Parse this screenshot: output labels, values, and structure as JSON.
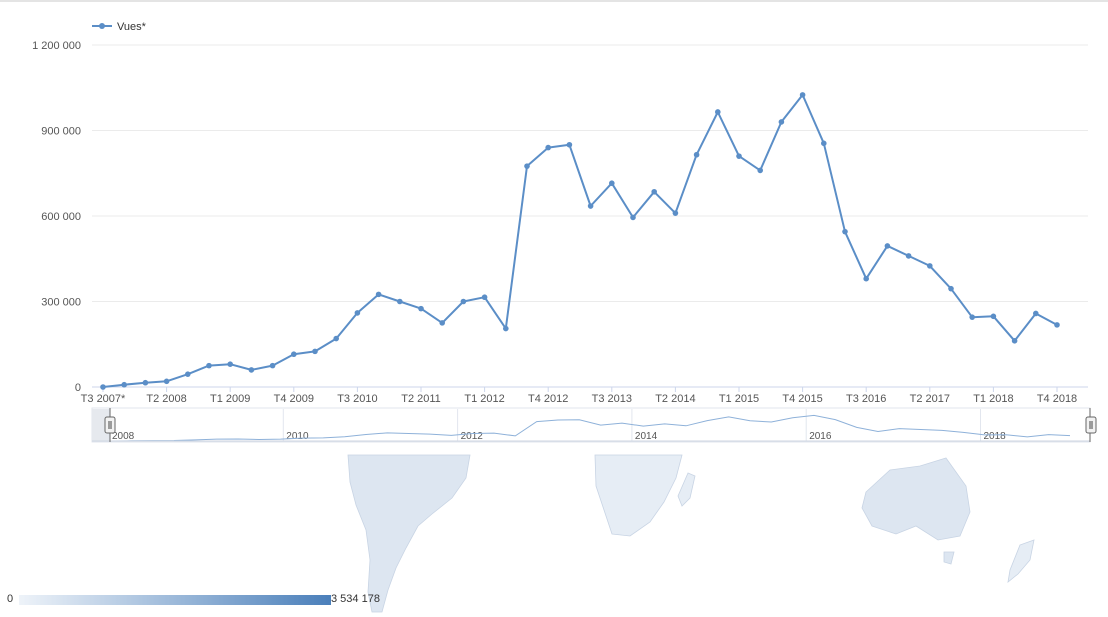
{
  "chart_data": {
    "type": "line",
    "legend": {
      "label": "Vues*",
      "placement": "top-left"
    },
    "series": [
      {
        "name": "Vues*",
        "color": "#5b8ec7",
        "values": [
          0,
          8000,
          15000,
          20000,
          45000,
          75000,
          80000,
          60000,
          75000,
          115000,
          125000,
          170000,
          260000,
          325000,
          300000,
          275000,
          225000,
          300000,
          315000,
          205000,
          775000,
          840000,
          850000,
          635000,
          715000,
          595000,
          685000,
          610000,
          815000,
          965000,
          810000,
          760000,
          930000,
          1025000,
          855000,
          545000,
          380000,
          495000,
          460000,
          425000,
          345000,
          245000,
          248000,
          162000,
          258000,
          218000
        ]
      }
    ],
    "x_tick_labels": [
      "T3 2007*",
      "T2 2008",
      "T1 2009",
      "T4 2009",
      "T3 2010",
      "T2 2011",
      "T1 2012",
      "T4 2012",
      "T3 2013",
      "T2 2014",
      "T1 2015",
      "T4 2015",
      "T3 2016",
      "T2 2017",
      "T1 2018",
      "T4 2018"
    ],
    "y_ticks": [
      {
        "value": 0,
        "label": "0"
      },
      {
        "value": 300000,
        "label": "300 000"
      },
      {
        "value": 600000,
        "label": "600 000"
      },
      {
        "value": 900000,
        "label": "900 000"
      },
      {
        "value": 1200000,
        "label": "1 200 000"
      }
    ],
    "ylim": [
      0,
      1200000
    ],
    "grid": true,
    "navigator": {
      "year_labels": [
        "2008",
        "2010",
        "2012",
        "2014",
        "2016",
        "2018"
      ]
    }
  },
  "map": {
    "color_scale": {
      "min_label": "0",
      "max_label": "3 534 178",
      "min_color": "#eef3f9",
      "max_color": "#4a7fba"
    },
    "land_color": "#dde6f1"
  }
}
